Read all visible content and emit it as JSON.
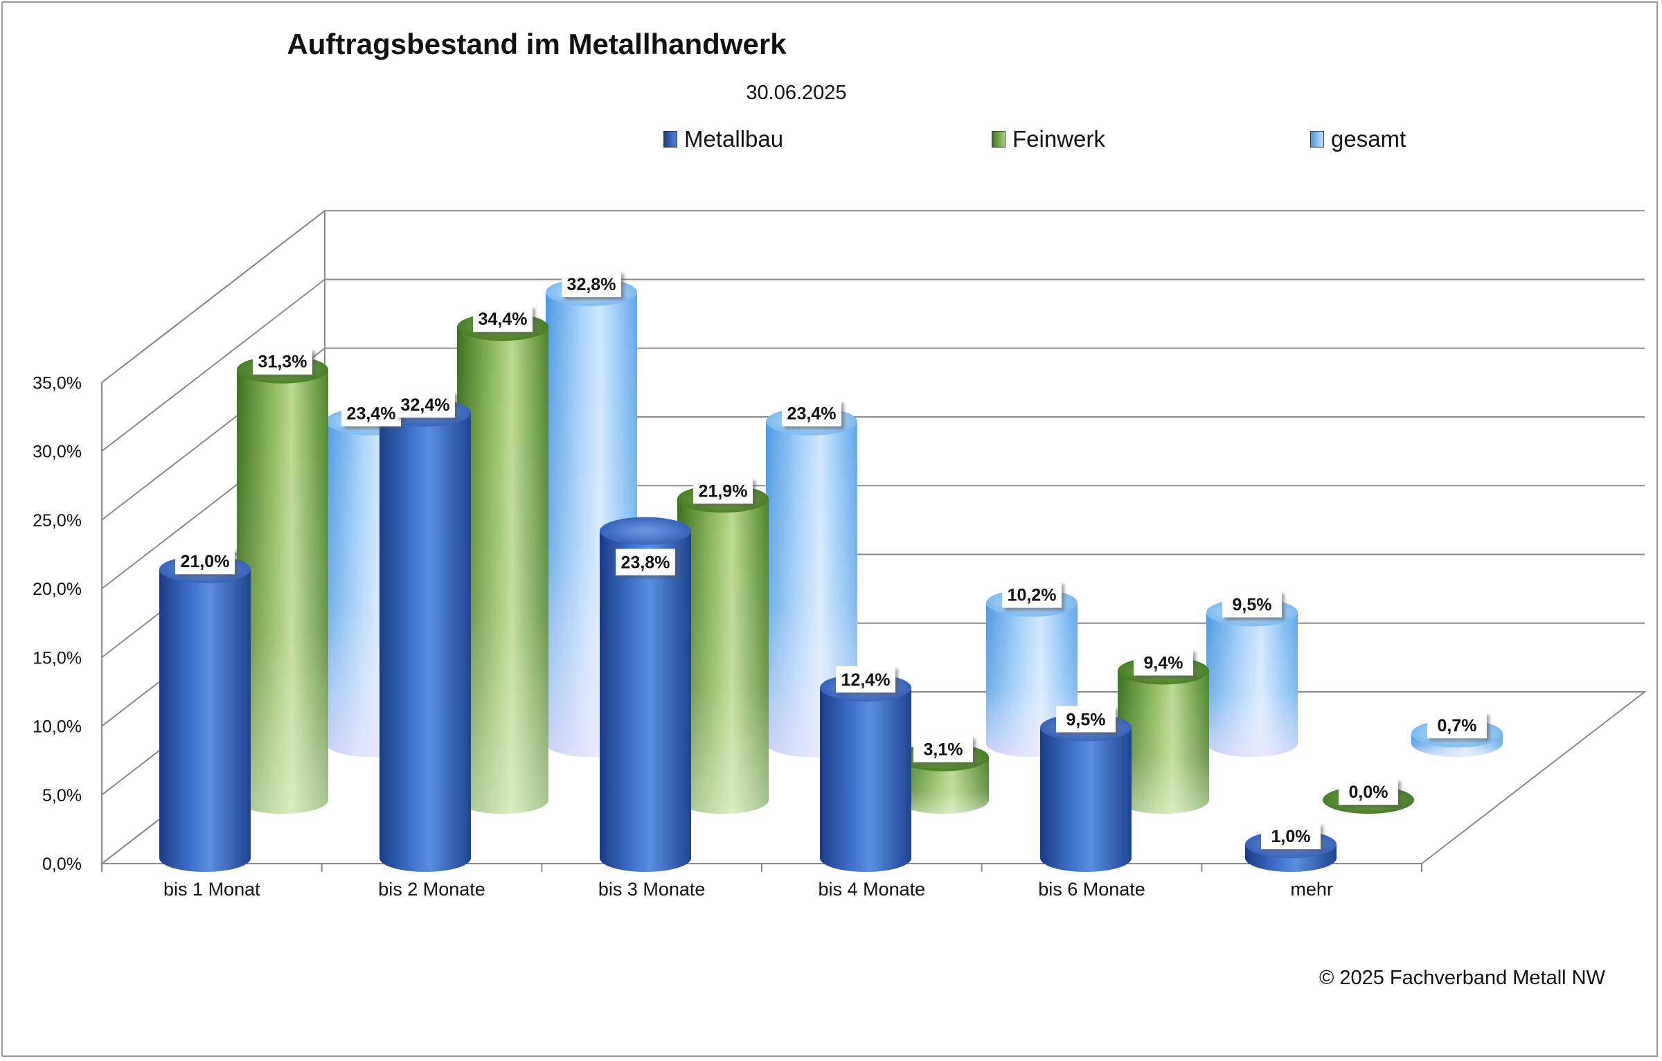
{
  "chart_data": {
    "type": "bar",
    "title": "Auftragsbestand im Metallhandwerk",
    "subtitle": "30.06.2025",
    "categories": [
      "bis 1 Monat",
      "bis 2 Monate",
      "bis 3 Monate",
      "bis 4 Monate",
      "bis 6 Monate",
      "mehr"
    ],
    "series": [
      {
        "name": "Metallbau",
        "values": [
          21.0,
          32.4,
          23.8,
          12.4,
          9.5,
          1.0
        ],
        "labels": [
          "21,0%",
          "32,4%",
          "23,8%",
          "12,4%",
          "9,5%",
          "1,0%"
        ],
        "color": "#2f5db8"
      },
      {
        "name": "Feinwerk",
        "values": [
          31.3,
          34.4,
          21.9,
          3.1,
          9.4,
          0.0
        ],
        "labels": [
          "31,3%",
          "34,4%",
          "21,9%",
          "3,1%",
          "9,4%",
          "0,0%"
        ],
        "color": "#5f9632"
      },
      {
        "name": "gesamt",
        "values": [
          23.4,
          32.8,
          23.4,
          10.2,
          9.5,
          0.7
        ],
        "labels": [
          "23,4%",
          "32,8%",
          "23,4%",
          "10,2%",
          "9,5%",
          "0,7%"
        ],
        "color": "#5aa8ec"
      }
    ],
    "yticks": [
      "0,0%",
      "5,0%",
      "10,0%",
      "15,0%",
      "20,0%",
      "25,0%",
      "30,0%",
      "35,0%"
    ],
    "ylim": [
      0,
      35
    ],
    "grid": true,
    "style": "3d-cylinder",
    "legend_position": "top"
  },
  "footer": {
    "copyright": "© 2025 Fachverband Metall NW"
  }
}
